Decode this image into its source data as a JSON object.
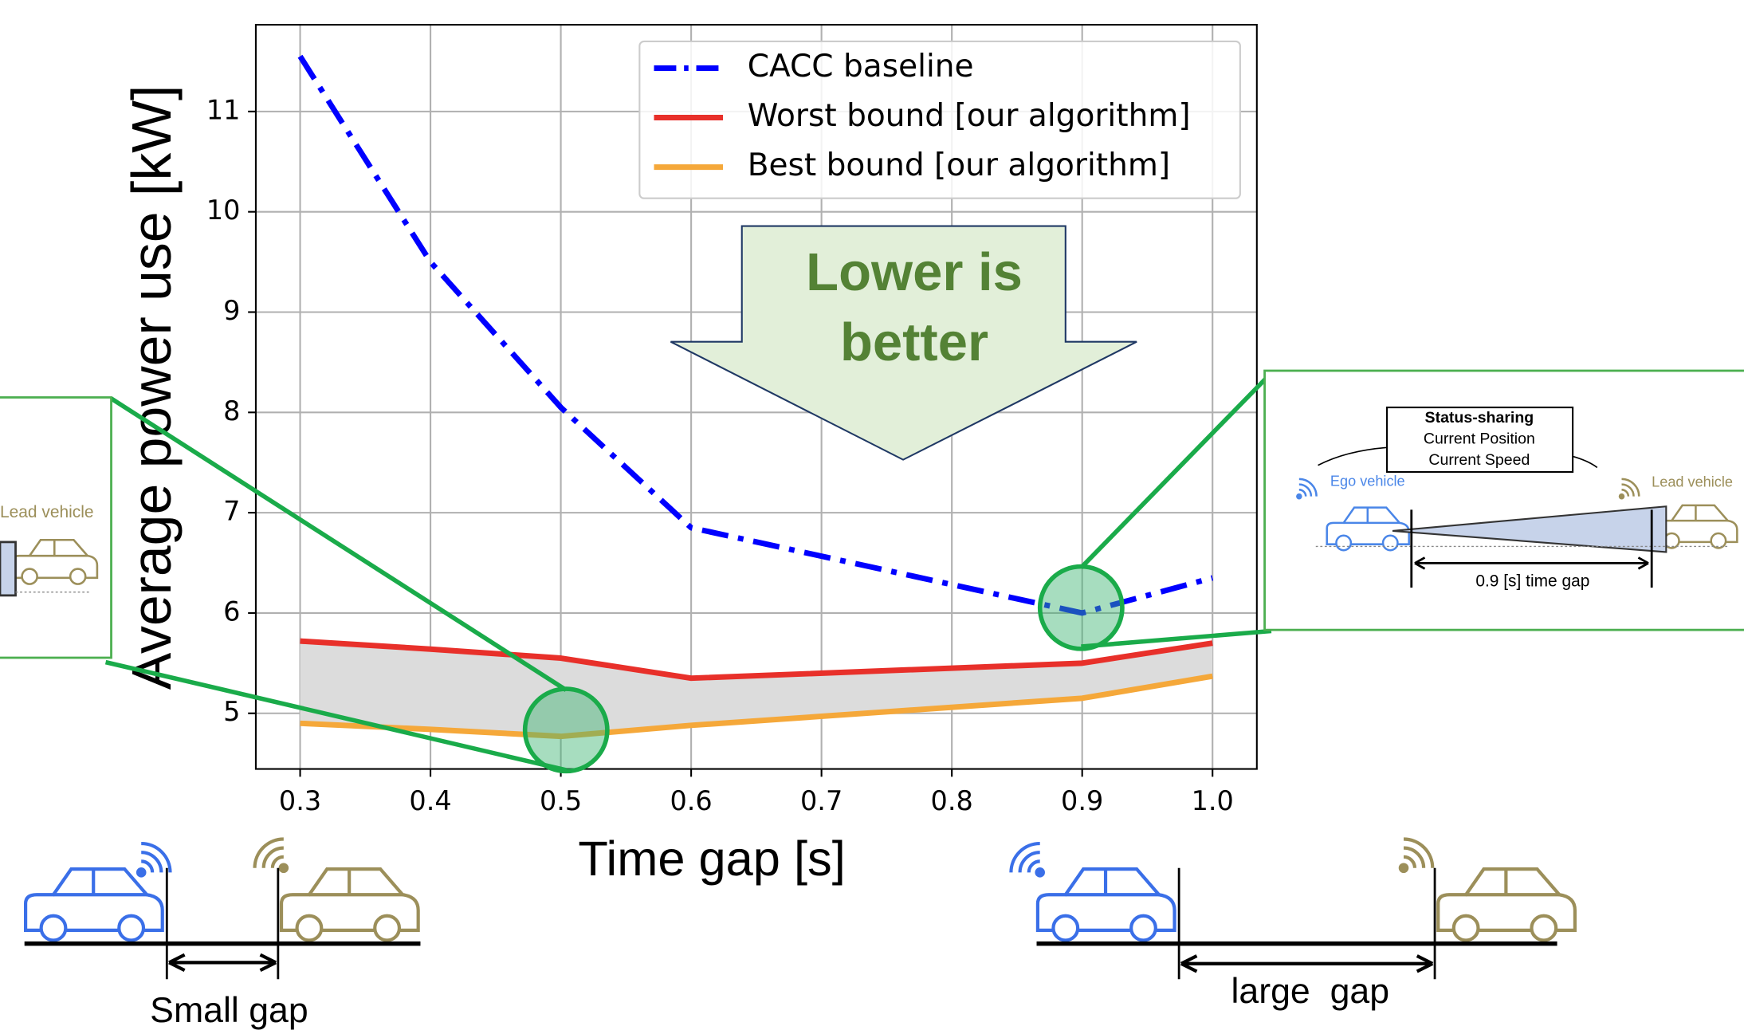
{
  "chart_data": {
    "type": "line",
    "x_label": "Time gap [s]",
    "y_label": "Average power use [kW]",
    "x": [
      0.3,
      0.4,
      0.5,
      0.6,
      0.9,
      1.0
    ],
    "series": [
      {
        "name": "CACC baseline",
        "color": "#0000ff",
        "style": "dashdot",
        "values": [
          11.55,
          9.5,
          8.05,
          6.85,
          6.0,
          6.35
        ]
      },
      {
        "name": "Worst bound [our algorithm]",
        "color": "#e8302a",
        "style": "solid",
        "values": [
          5.72,
          5.64,
          5.55,
          5.35,
          5.5,
          5.7
        ]
      },
      {
        "name": "Best bound [our algorithm]",
        "color": "#f5a83a",
        "style": "solid",
        "values": [
          4.9,
          4.84,
          4.77,
          4.88,
          5.15,
          5.37
        ]
      }
    ],
    "band_color": "#dcdcdc",
    "xlim": [
      0.266,
      1.034
    ],
    "ylim": [
      4.445,
      11.865
    ],
    "xticks": [
      0.3,
      0.4,
      0.5,
      0.6,
      0.7,
      0.8,
      0.9,
      {
        "value": 1.0,
        "label": "1.0"
      }
    ],
    "yticks": [
      5,
      6,
      7,
      8,
      9,
      10,
      11
    ],
    "grid": true,
    "legend": "upper right",
    "annotation": [
      "Lower is",
      "better"
    ]
  },
  "left_inset": {
    "lead_label": "Lead vehicle"
  },
  "right_inset": {
    "status_box": [
      "Status-sharing",
      "Current Position",
      "Current Speed"
    ],
    "ego_label": "Ego vehicle",
    "lead_label": "Lead vehicle",
    "gap_label": "0.9 [s] time gap"
  },
  "bottom": {
    "small_gap": "Small gap",
    "large_gap": "large  gap"
  }
}
